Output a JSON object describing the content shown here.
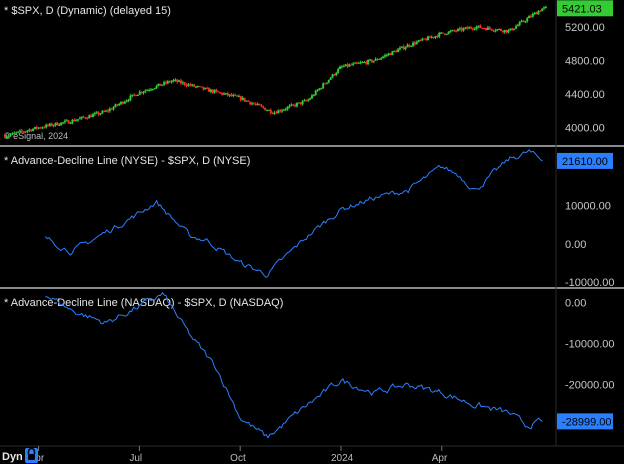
{
  "panels": [
    {
      "title": "* $SPX, D (Dynamic) (delayed 15)",
      "last_value": "5421.03",
      "badge_color": "#33cc33",
      "copyright": "© eSignal, 2024"
    },
    {
      "title": "* Advance-Decline Line (NYSE) - $SPX, D (NYSE)",
      "last_value": "21610.00",
      "badge_color": "#2a7fff"
    },
    {
      "title": "* Advance-Decline Line (NASDAQ) - $SPX, D (NASDAQ)",
      "last_value": "-28999.00",
      "badge_color": "#2a7fff"
    }
  ],
  "footer": {
    "mode_label": "Dyn",
    "lock_icon": "lock-icon"
  },
  "chart_data": [
    {
      "type": "candlestick",
      "title": "* $SPX, D (Dynamic) (delayed 15)",
      "y_ticks": [
        "5200.00",
        "4800.00",
        "4400.00",
        "4000.00"
      ],
      "y_tick_values": [
        5200,
        4800,
        4400,
        4000
      ],
      "ylim": [
        3780,
        5520
      ],
      "up_color": "#33cc33",
      "down_color": "#ff2a2a",
      "x_months": [
        0,
        1,
        2,
        3,
        4,
        5,
        6,
        7,
        8,
        9,
        10,
        11,
        12,
        13,
        14,
        15,
        16
      ],
      "close_by_month": [
        3900,
        4000,
        4080,
        4190,
        4420,
        4560,
        4450,
        4350,
        4180,
        4320,
        4720,
        4800,
        4980,
        5120,
        5200,
        5150,
        5421.03
      ]
    },
    {
      "type": "line",
      "title": "* Advance-Decline Line (NYSE) - $SPX, D (NYSE)",
      "y_ticks": [
        "10000.00",
        "0.00",
        "-10000.00"
      ],
      "y_tick_values": [
        10000,
        0,
        -10000
      ],
      "ylim": [
        -11500,
        25500
      ],
      "color": "#2a7fff",
      "x_months": [
        1.2,
        2,
        3,
        4,
        4.5,
        5.5,
        6,
        7,
        7.8,
        9,
        10,
        11,
        12,
        13,
        13.5,
        14,
        15,
        15.6,
        16
      ],
      "values": [
        1500,
        -2000,
        3000,
        8000,
        11000,
        2000,
        1000,
        -5000,
        -8000,
        2000,
        9000,
        12000,
        14000,
        20000,
        18000,
        14000,
        22000,
        24000,
        21610
      ]
    },
    {
      "type": "line",
      "title": "* Advance-Decline Line (NASDAQ) - $SPX, D (NASDAQ)",
      "y_ticks": [
        "0.00",
        "-10000.00",
        "-20000.00"
      ],
      "y_tick_values": [
        0,
        -10000,
        -20000
      ],
      "ylim": [
        -35000,
        3500
      ],
      "color": "#2a7fff",
      "x_months": [
        1.2,
        2,
        3,
        4,
        4.7,
        5.5,
        6.3,
        7,
        7.8,
        9,
        10,
        11,
        12,
        13,
        14,
        15,
        15.5,
        16
      ],
      "values": [
        2000,
        -2000,
        -5000,
        -1000,
        2000,
        -8000,
        -16000,
        -28000,
        -33000,
        -25000,
        -19000,
        -22000,
        -20000,
        -22000,
        -25000,
        -27000,
        -30000,
        -28999
      ]
    }
  ],
  "x_axis": {
    "labels": [
      "Apr",
      "Jul",
      "Oct",
      "2024",
      "Apr"
    ],
    "label_months": [
      1,
      4,
      7,
      10,
      13
    ]
  }
}
